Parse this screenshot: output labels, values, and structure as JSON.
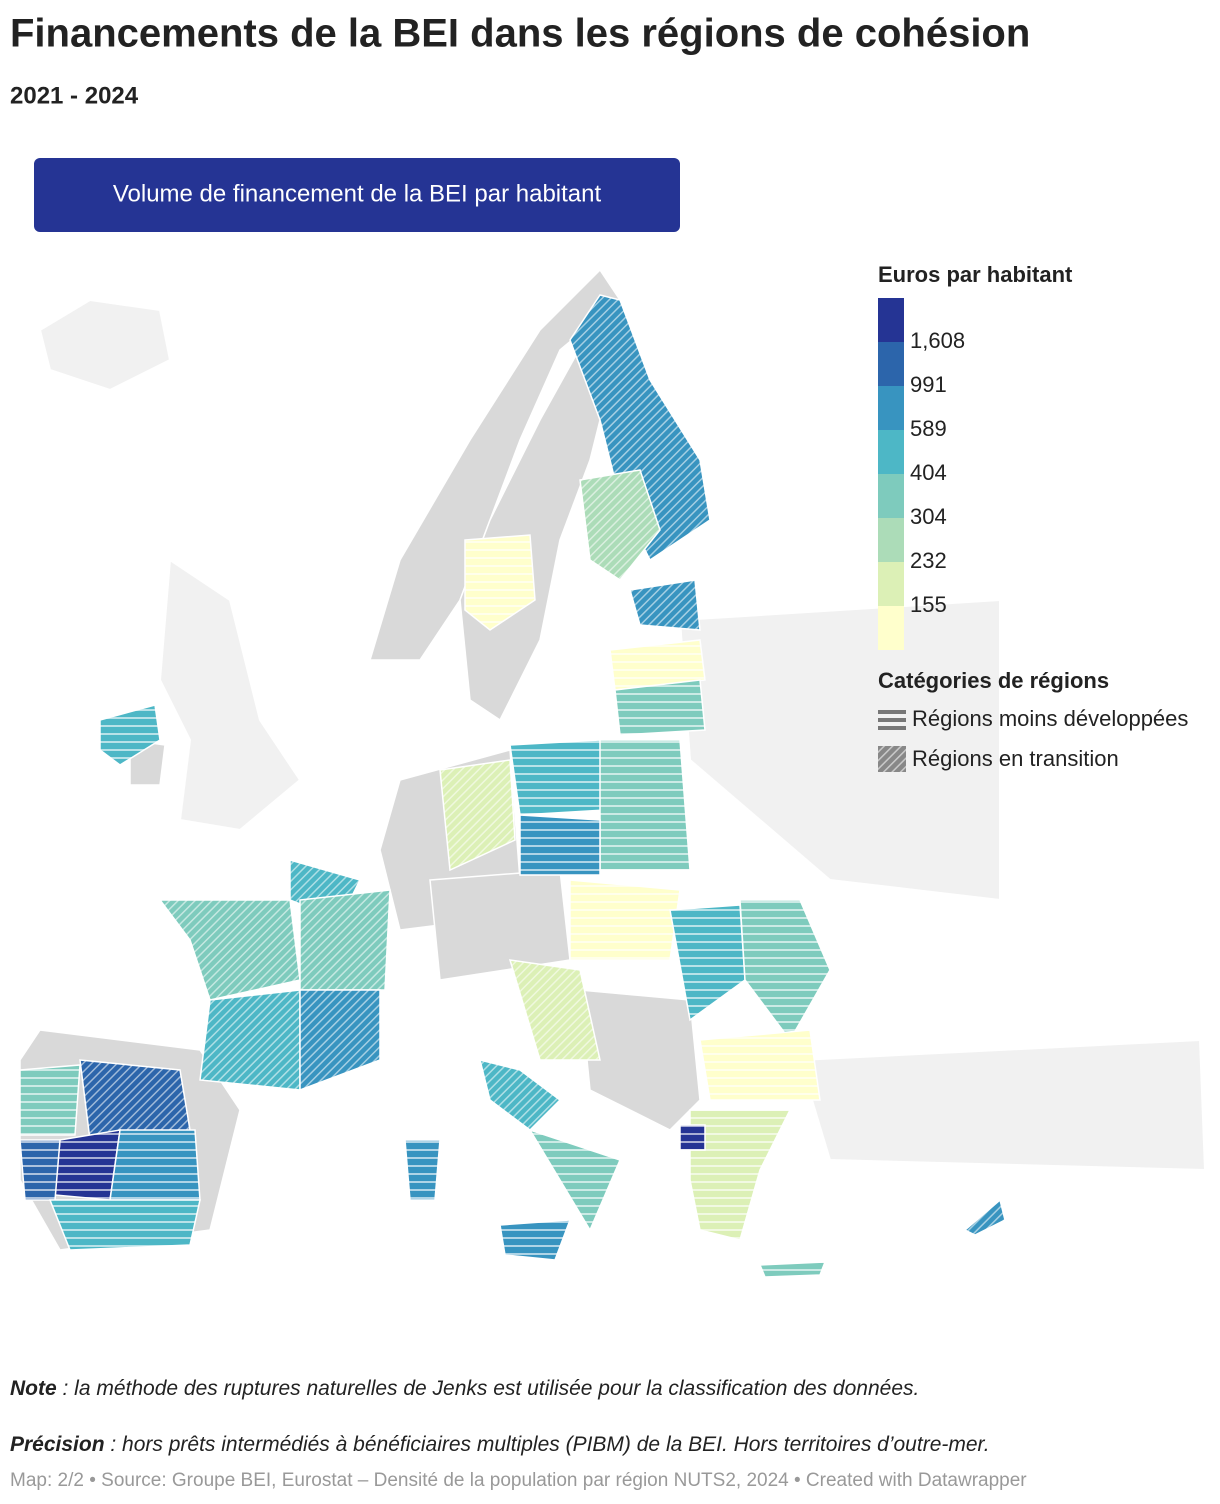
{
  "header": {
    "title": "Financements de la BEI dans les régions de cohésion",
    "subtitle": "2021 - 2024",
    "button": "Volume de financement de la BEI par habitant"
  },
  "legend": {
    "title": "Euros par habitant",
    "colors": [
      "#253494",
      "#2c65ab",
      "#3894c0",
      "#4db7c6",
      "#7ecbbd",
      "#acdcb8",
      "#dcf0b6",
      "#ffffcc"
    ],
    "breaks": [
      "1,608",
      "991",
      "589",
      "404",
      "304",
      "232",
      "155"
    ],
    "categories_title": "Catégories de régions",
    "categories": [
      "Régions moins développées",
      "Régions en transition"
    ]
  },
  "notes": [
    {
      "label": "Note",
      "text": " : la méthode des ruptures naturelles de Jenks est utilisée pour la classification des données."
    },
    {
      "label": "Précision",
      "text": " : hors prêts intermédiés à bénéficiaires multiples (PIBM) de la BEI. Hors territoires d’outre-mer."
    }
  ],
  "footer": "Map: 2/2 • Source: Groupe BEI, Eurostat – Densité de la population par région NUTS2, 2024 • Created with Datawrapper"
}
